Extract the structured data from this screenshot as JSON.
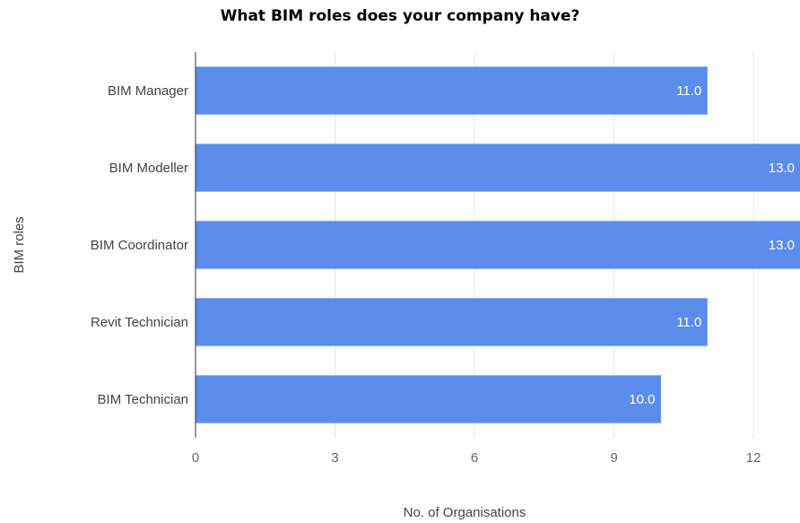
{
  "chart_data": {
    "type": "bar",
    "orientation": "horizontal",
    "title": "What BIM roles does your company have?",
    "xlabel": "No. of Organisations",
    "ylabel": "BIM roles",
    "categories": [
      "BIM Manager",
      "BIM Modeller",
      "BIM Coordinator",
      "Revit Technician",
      "BIM Technician"
    ],
    "values": [
      11,
      13,
      13,
      11,
      10
    ],
    "data_labels": [
      "11.0",
      "13.0",
      "13.0",
      "11.0",
      "10.0"
    ],
    "xlim": [
      0,
      13
    ],
    "xticks": [
      0,
      3,
      6,
      9,
      12
    ],
    "grid": true,
    "bar_color": "#5b8ded"
  }
}
